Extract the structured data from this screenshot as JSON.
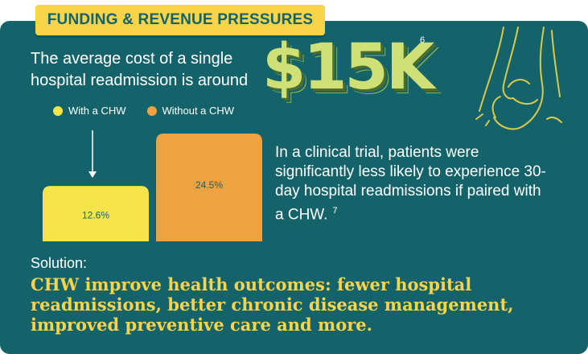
{
  "header": {
    "tag": "FUNDING & REVENUE PRESSURES"
  },
  "cost": {
    "lead_text": "The average cost of a single hospital readmission is around",
    "amount": "$15K",
    "citation": "6"
  },
  "trial": {
    "text": "In a clinical trial, patients were significantly less likely to experience 30-day hospital readmissions if paired with a CHW.",
    "citation": "7"
  },
  "solution": {
    "label": "Solution:",
    "text": "CHW improve health outcomes: fewer hospital readmissions, better chronic disease management, improved preventive care and more."
  },
  "colors": {
    "panel": "#14636a",
    "accent_yellow": "#f7d44a",
    "with_chw": "#f5e44a",
    "without_chw": "#eea242",
    "big_number": "#cfe176"
  },
  "icons": {
    "decoration": "hands-outline-icon"
  },
  "chart_data": {
    "type": "bar",
    "categories": [
      "With a CHW",
      "Without a CHW"
    ],
    "values": [
      12.6,
      24.5
    ],
    "value_labels": [
      "12.6%",
      "24.5%"
    ],
    "series_colors": [
      "#f5e44a",
      "#eea242"
    ],
    "legend": [
      "With a CHW",
      "Without a CHW"
    ],
    "legend_position": "top-left",
    "ylim": [
      0,
      24.5
    ],
    "grid": false,
    "title": "",
    "xlabel": "",
    "ylabel": ""
  }
}
